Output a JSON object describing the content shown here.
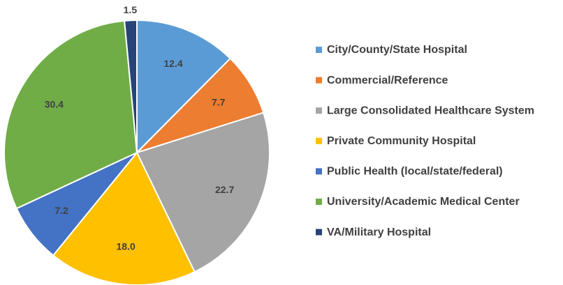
{
  "chart_data": {
    "type": "pie",
    "categories": [
      "City/County/State Hospital",
      "Commercial/Reference",
      "Large Consolidated Healthcare System",
      "Private Community Hospital",
      "Public Health (local/state/federal)",
      "University/Academic Medical Center",
      "VA/Military Hospital"
    ],
    "values": [
      12.4,
      7.7,
      22.7,
      18.0,
      7.2,
      30.4,
      1.5
    ],
    "value_labels": [
      "12.4",
      "7.7",
      "22.7",
      "18.0",
      "7.2",
      "30.4",
      "1.5"
    ],
    "colors": [
      "#5b9bd5",
      "#ed7d31",
      "#a5a5a5",
      "#ffc000",
      "#4472c4",
      "#70ad47",
      "#264478"
    ],
    "legend": "right"
  }
}
